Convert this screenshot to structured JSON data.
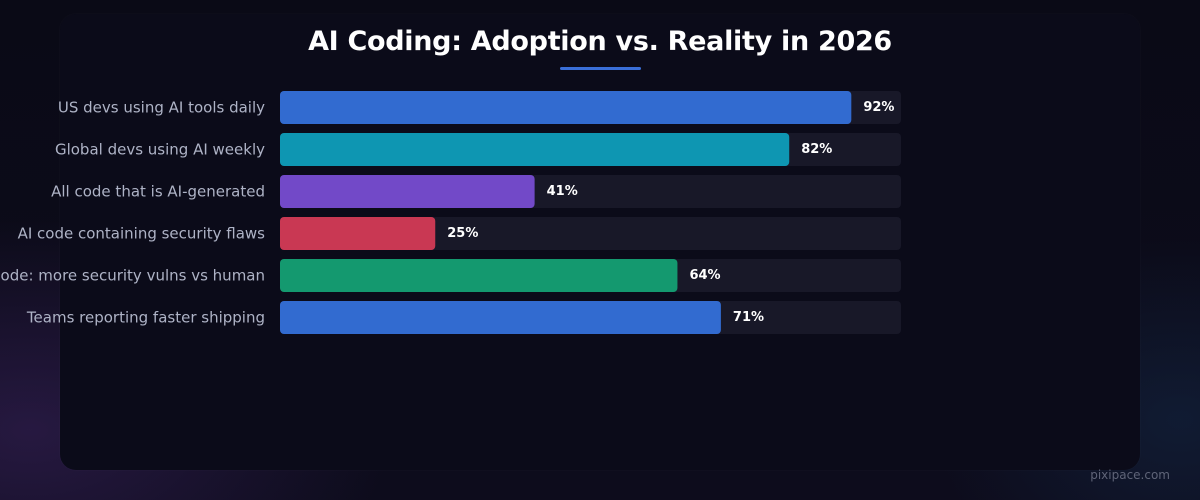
{
  "chart_data": {
    "type": "bar",
    "orientation": "horizontal",
    "title": "AI Coding: Adoption vs. Reality in 2026",
    "categories": [
      "US devs using AI tools daily",
      "Global devs using AI weekly",
      "All code that is AI-generated",
      "AI code containing security flaws",
      "AI code: more security vulns vs human",
      "Teams reporting faster shipping"
    ],
    "values": [
      92,
      82,
      41,
      25,
      64,
      71
    ],
    "value_labels": [
      "92%",
      "82%",
      "41%",
      "25%",
      "64%",
      "71%"
    ],
    "colors": [
      "#326bd0",
      "#0e96b2",
      "#7249c8",
      "#c93853",
      "#14996f",
      "#326bd0"
    ],
    "xlim": [
      0,
      100
    ],
    "track_color": "#181828",
    "grid": false
  },
  "colors": {
    "accent_underline": "#3a6fd8"
  },
  "watermark": "pixipace.com"
}
